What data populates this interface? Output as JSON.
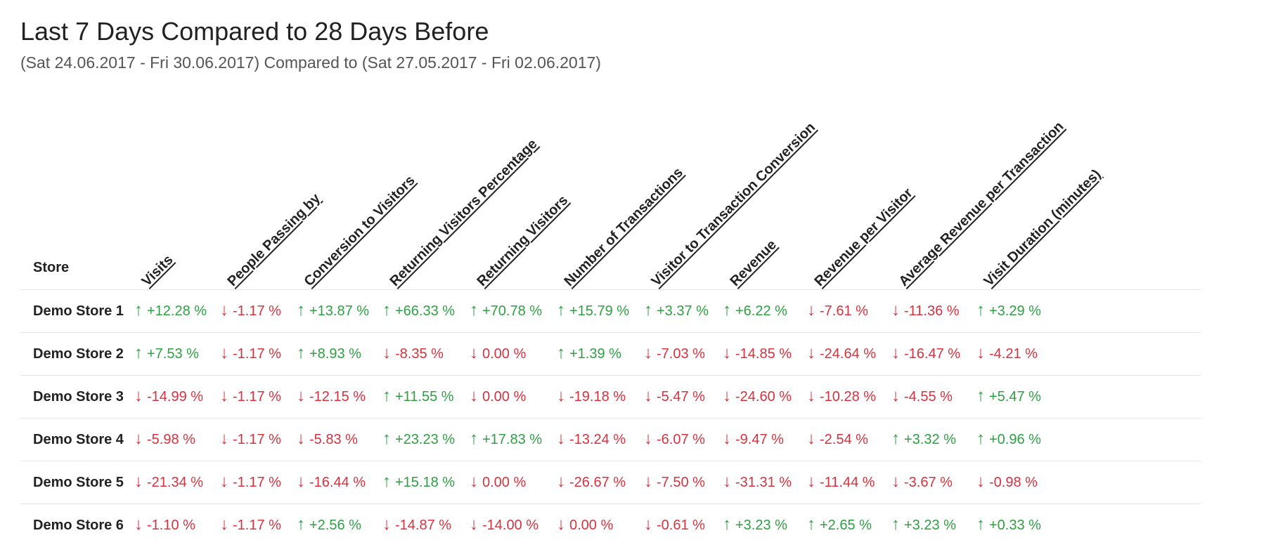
{
  "title": "Last 7 Days Compared to 28 Days Before",
  "subtitle": "(Sat 24.06.2017 - Fri 30.06.2017) Compared to (Sat 27.05.2017 - Fri 02.06.2017)",
  "table": {
    "store_header": "Store",
    "columns": [
      "Visits",
      "People Passing by",
      "Conversion to Visitors",
      "Returning Visitors Percentage",
      "Returning Visitors",
      "Number of Transactions",
      "Visitor to Transaction Conversion",
      "Revenue",
      "Revenue per Visitor",
      "Average Revenue per Transaction",
      "Visit Duration (minutes)"
    ],
    "rows": [
      {
        "store": "Demo Store 1",
        "values": [
          {
            "direction": "up",
            "text": "+12.28 %"
          },
          {
            "direction": "down",
            "text": "-1.17 %"
          },
          {
            "direction": "up",
            "text": "+13.87 %"
          },
          {
            "direction": "up",
            "text": "+66.33 %"
          },
          {
            "direction": "up",
            "text": "+70.78 %"
          },
          {
            "direction": "up",
            "text": "+15.79 %"
          },
          {
            "direction": "up",
            "text": "+3.37 %"
          },
          {
            "direction": "up",
            "text": "+6.22 %"
          },
          {
            "direction": "down",
            "text": "-7.61 %"
          },
          {
            "direction": "down",
            "text": "-11.36 %"
          },
          {
            "direction": "up",
            "text": "+3.29 %"
          }
        ]
      },
      {
        "store": "Demo Store 2",
        "values": [
          {
            "direction": "up",
            "text": "+7.53 %"
          },
          {
            "direction": "down",
            "text": "-1.17 %"
          },
          {
            "direction": "up",
            "text": "+8.93 %"
          },
          {
            "direction": "down",
            "text": "-8.35 %"
          },
          {
            "direction": "down",
            "text": "0.00 %"
          },
          {
            "direction": "up",
            "text": "+1.39 %"
          },
          {
            "direction": "down",
            "text": "-7.03 %"
          },
          {
            "direction": "down",
            "text": "-14.85 %"
          },
          {
            "direction": "down",
            "text": "-24.64 %"
          },
          {
            "direction": "down",
            "text": "-16.47 %"
          },
          {
            "direction": "down",
            "text": "-4.21 %"
          }
        ]
      },
      {
        "store": "Demo Store 3",
        "values": [
          {
            "direction": "down",
            "text": "-14.99 %"
          },
          {
            "direction": "down",
            "text": "-1.17 %"
          },
          {
            "direction": "down",
            "text": "-12.15 %"
          },
          {
            "direction": "up",
            "text": "+11.55 %"
          },
          {
            "direction": "down",
            "text": "0.00 %"
          },
          {
            "direction": "down",
            "text": "-19.18 %"
          },
          {
            "direction": "down",
            "text": "-5.47 %"
          },
          {
            "direction": "down",
            "text": "-24.60 %"
          },
          {
            "direction": "down",
            "text": "-10.28 %"
          },
          {
            "direction": "down",
            "text": "-4.55 %"
          },
          {
            "direction": "up",
            "text": "+5.47 %"
          }
        ]
      },
      {
        "store": "Demo Store 4",
        "values": [
          {
            "direction": "down",
            "text": "-5.98 %"
          },
          {
            "direction": "down",
            "text": "-1.17 %"
          },
          {
            "direction": "down",
            "text": "-5.83 %"
          },
          {
            "direction": "up",
            "text": "+23.23 %"
          },
          {
            "direction": "up",
            "text": "+17.83 %"
          },
          {
            "direction": "down",
            "text": "-13.24 %"
          },
          {
            "direction": "down",
            "text": "-6.07 %"
          },
          {
            "direction": "down",
            "text": "-9.47 %"
          },
          {
            "direction": "down",
            "text": "-2.54 %"
          },
          {
            "direction": "up",
            "text": "+3.32 %"
          },
          {
            "direction": "up",
            "text": "+0.96 %"
          }
        ]
      },
      {
        "store": "Demo Store 5",
        "values": [
          {
            "direction": "down",
            "text": "-21.34 %"
          },
          {
            "direction": "down",
            "text": "-1.17 %"
          },
          {
            "direction": "down",
            "text": "-16.44 %"
          },
          {
            "direction": "up",
            "text": "+15.18 %"
          },
          {
            "direction": "down",
            "text": "0.00 %"
          },
          {
            "direction": "down",
            "text": "-26.67 %"
          },
          {
            "direction": "down",
            "text": "-7.50 %"
          },
          {
            "direction": "down",
            "text": "-31.31 %"
          },
          {
            "direction": "down",
            "text": "-11.44 %"
          },
          {
            "direction": "down",
            "text": "-3.67 %"
          },
          {
            "direction": "down",
            "text": "-0.98 %"
          }
        ]
      },
      {
        "store": "Demo Store 6",
        "values": [
          {
            "direction": "down",
            "text": "-1.10 %"
          },
          {
            "direction": "down",
            "text": "-1.17 %"
          },
          {
            "direction": "up",
            "text": "+2.56 %"
          },
          {
            "direction": "down",
            "text": "-14.87 %"
          },
          {
            "direction": "down",
            "text": "-14.00 %"
          },
          {
            "direction": "down",
            "text": "0.00 %"
          },
          {
            "direction": "down",
            "text": "-0.61 %"
          },
          {
            "direction": "up",
            "text": "+3.23 %"
          },
          {
            "direction": "up",
            "text": "+2.65 %"
          },
          {
            "direction": "up",
            "text": "+3.23 %"
          },
          {
            "direction": "up",
            "text": "+0.33 %"
          }
        ]
      }
    ]
  },
  "colors": {
    "up": "#2ea043",
    "down": "#d6333f"
  },
  "icons": {
    "up": "arrow-up-icon",
    "down": "arrow-down-icon"
  }
}
